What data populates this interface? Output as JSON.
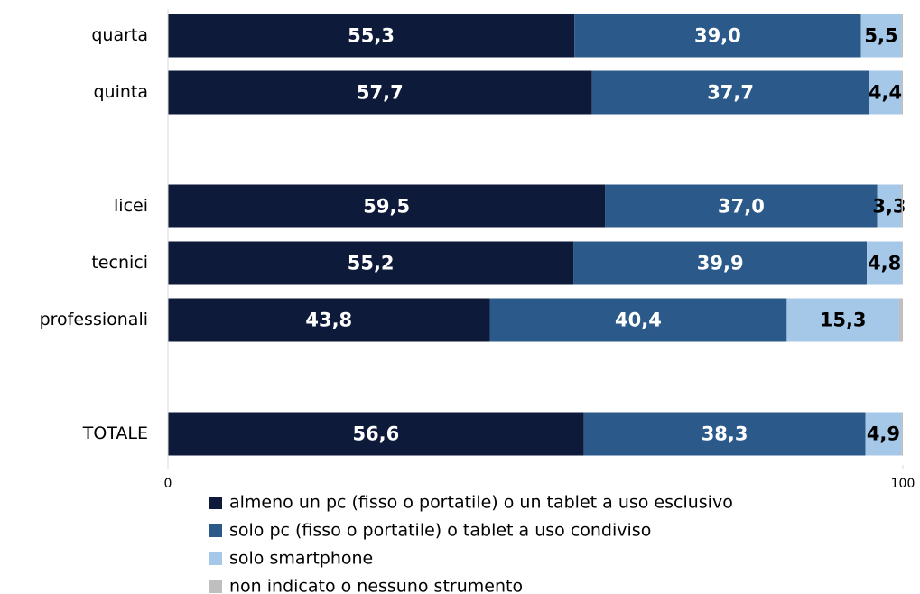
{
  "chart_data": {
    "type": "stacked-barh",
    "categories": [
      "quarta",
      "quinta",
      null,
      "licei",
      "tecnici",
      "professionali",
      null,
      "TOTALE"
    ],
    "series": [
      {
        "name": "almeno un pc (fisso o portatile) o un tablet a uso esclusivo",
        "color": "#0d1a3a",
        "label_color": "#ffffff",
        "values": [
          55.3,
          57.7,
          null,
          59.5,
          55.2,
          43.8,
          null,
          56.6
        ],
        "value_labels": [
          "55,3",
          "57,7",
          null,
          "59,5",
          "55,2",
          "43,8",
          null,
          "56,6"
        ]
      },
      {
        "name": "solo pc (fisso o portatile) o tablet a uso condiviso",
        "color": "#2b5a8a",
        "label_color": "#ffffff",
        "values": [
          39.0,
          37.7,
          null,
          37.0,
          39.9,
          40.4,
          null,
          38.3
        ],
        "value_labels": [
          "39,0",
          "37,7",
          null,
          "37,0",
          "39,9",
          "40,4",
          null,
          "38,3"
        ]
      },
      {
        "name": "solo smartphone",
        "color": "#a6c8e8",
        "label_color": "#000000",
        "values": [
          5.5,
          4.4,
          null,
          3.3,
          4.8,
          15.3,
          null,
          4.9
        ],
        "value_labels": [
          "5,5",
          "4,4",
          null,
          "3,3",
          "4,8",
          "15,3",
          null,
          "4,9"
        ]
      },
      {
        "name": "non indicato o nessuno strumento",
        "color": "#bfbfbf",
        "values": [
          0.2,
          0.2,
          null,
          0.2,
          0.1,
          0.5,
          null,
          0.2
        ]
      }
    ],
    "xlim": [
      0,
      100
    ],
    "xticks": [
      0,
      100
    ],
    "grid": false
  }
}
